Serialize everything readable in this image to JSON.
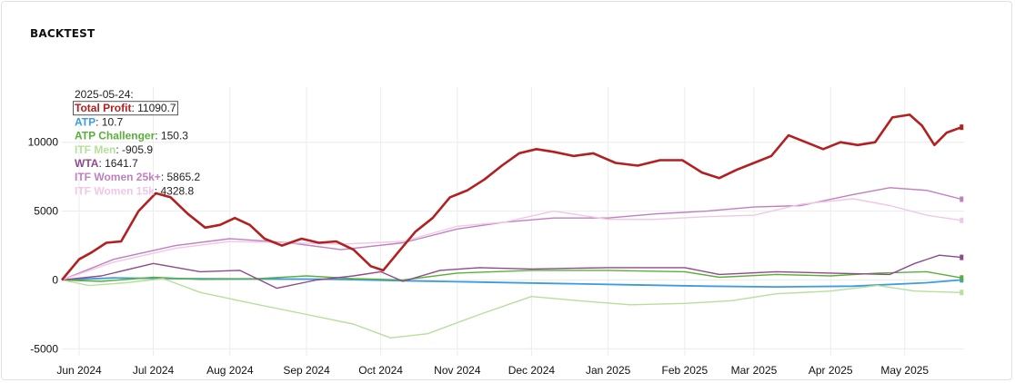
{
  "title": "BACKTEST",
  "chart_data": {
    "type": "line",
    "title": "BACKTEST",
    "x_tick_labels": [
      "Jun 2024",
      "Jul 2024",
      "Aug 2024",
      "Sep 2024",
      "Oct 2024",
      "Nov 2024",
      "Dec 2024",
      "Jan 2025",
      "Feb 2025",
      "Mar 2025",
      "Apr 2025",
      "May 2025"
    ],
    "x_range": [
      "2024-05-25",
      "2025-05-25"
    ],
    "y_ticks": [
      -5000,
      0,
      5000,
      10000
    ],
    "ylim": [
      -5500,
      14000
    ],
    "grid": true,
    "legend": {
      "date": "2025-05-24:",
      "placement": "top-left"
    },
    "series": [
      {
        "name": "ATP",
        "legend_value": "10.7",
        "color": "#3d9be0",
        "width": 1.8,
        "x": [
          "2024-05-25",
          "2024-06-15",
          "2024-07-10",
          "2024-08-10",
          "2024-09-10",
          "2024-10-10",
          "2024-11-10",
          "2024-12-10",
          "2025-01-10",
          "2025-02-10",
          "2025-03-10",
          "2025-04-10",
          "2025-05-10",
          "2025-05-24"
        ],
        "y": [
          0,
          150,
          100,
          80,
          60,
          -50,
          -150,
          -250,
          -350,
          -450,
          -500,
          -450,
          -200,
          10.7
        ]
      },
      {
        "name": "ATP Challenger",
        "legend_value": "150.3",
        "color": "#5aaf3a",
        "width": 1.4,
        "x": [
          "2024-05-25",
          "2024-06-10",
          "2024-07-01",
          "2024-07-20",
          "2024-08-10",
          "2024-09-01",
          "2024-09-20",
          "2024-10-10",
          "2024-11-01",
          "2024-12-01",
          "2025-01-01",
          "2025-02-01",
          "2025-02-15",
          "2025-03-10",
          "2025-04-01",
          "2025-04-20",
          "2025-05-10",
          "2025-05-24"
        ],
        "y": [
          0,
          -100,
          200,
          50,
          80,
          300,
          100,
          0,
          500,
          700,
          700,
          600,
          200,
          400,
          300,
          500,
          600,
          150.3
        ]
      },
      {
        "name": "ITF Men",
        "legend_value": "-905.9",
        "color": "#b6e09a",
        "width": 1.4,
        "x": [
          "2024-05-25",
          "2024-06-05",
          "2024-06-20",
          "2024-07-05",
          "2024-07-20",
          "2024-08-10",
          "2024-09-01",
          "2024-09-20",
          "2024-10-05",
          "2024-10-20",
          "2024-11-10",
          "2024-12-01",
          "2024-12-20",
          "2025-01-10",
          "2025-02-01",
          "2025-02-20",
          "2025-03-10",
          "2025-04-01",
          "2025-04-20",
          "2025-05-05",
          "2025-05-24"
        ],
        "y": [
          0,
          -400,
          -200,
          100,
          -900,
          -1700,
          -2500,
          -3200,
          -4200,
          -3900,
          -2500,
          -1200,
          -1500,
          -1800,
          -1700,
          -1500,
          -1000,
          -800,
          -400,
          -800,
          -905.9
        ]
      },
      {
        "name": "WTA",
        "legend_value": "1641.7",
        "color": "#8e4a8a",
        "width": 1.4,
        "x": [
          "2024-05-25",
          "2024-06-10",
          "2024-07-01",
          "2024-07-20",
          "2024-08-05",
          "2024-08-20",
          "2024-09-05",
          "2024-09-20",
          "2024-10-01",
          "2024-10-10",
          "2024-10-25",
          "2024-11-10",
          "2024-12-01",
          "2025-01-01",
          "2025-02-01",
          "2025-02-15",
          "2025-03-10",
          "2025-04-01",
          "2025-04-25",
          "2025-05-05",
          "2025-05-15",
          "2025-05-24"
        ],
        "y": [
          0,
          300,
          1200,
          600,
          700,
          -600,
          0,
          300,
          600,
          -100,
          700,
          900,
          800,
          900,
          900,
          400,
          600,
          500,
          400,
          1200,
          1800,
          1641.7
        ]
      },
      {
        "name": "ITF Women 25k+",
        "legend_value": "5865.2",
        "color": "#c080c0",
        "width": 1.4,
        "x": [
          "2024-05-25",
          "2024-06-15",
          "2024-07-10",
          "2024-08-01",
          "2024-08-25",
          "2024-09-15",
          "2024-10-10",
          "2024-11-01",
          "2024-11-20",
          "2024-12-10",
          "2025-01-01",
          "2025-01-20",
          "2025-02-10",
          "2025-03-01",
          "2025-03-20",
          "2025-04-10",
          "2025-04-25",
          "2025-05-10",
          "2025-05-24"
        ],
        "y": [
          0,
          1500,
          2500,
          3000,
          2700,
          2200,
          2700,
          3700,
          4200,
          4500,
          4500,
          4800,
          5000,
          5300,
          5400,
          6200,
          6700,
          6500,
          5865.2
        ]
      },
      {
        "name": "ITF Women 15k",
        "legend_value": "4328.8",
        "color": "#f0c8e6",
        "width": 1.4,
        "x": [
          "2024-05-25",
          "2024-06-15",
          "2024-07-10",
          "2024-08-01",
          "2024-08-25",
          "2024-09-15",
          "2024-10-10",
          "2024-11-01",
          "2024-11-20",
          "2024-12-10",
          "2025-01-01",
          "2025-01-20",
          "2025-02-10",
          "2025-03-01",
          "2025-03-20",
          "2025-04-10",
          "2025-04-25",
          "2025-05-10",
          "2025-05-24"
        ],
        "y": [
          0,
          1300,
          2300,
          2800,
          2700,
          2600,
          2800,
          3900,
          4200,
          5000,
          4400,
          4400,
          4600,
          4700,
          5500,
          5900,
          5400,
          4700,
          4328.8
        ]
      },
      {
        "name": "Total Profit",
        "legend_value": "11090.7",
        "color": "#b22020",
        "width": 2.6,
        "x": [
          "2024-05-25",
          "2024-06-01",
          "2024-06-06",
          "2024-06-12",
          "2024-06-18",
          "2024-06-25",
          "2024-07-02",
          "2024-07-08",
          "2024-07-15",
          "2024-07-22",
          "2024-07-28",
          "2024-08-03",
          "2024-08-09",
          "2024-08-15",
          "2024-08-22",
          "2024-08-30",
          "2024-09-06",
          "2024-09-13",
          "2024-09-20",
          "2024-09-27",
          "2024-10-02",
          "2024-10-08",
          "2024-10-15",
          "2024-10-22",
          "2024-10-29",
          "2024-11-05",
          "2024-11-12",
          "2024-11-19",
          "2024-11-26",
          "2024-12-03",
          "2024-12-10",
          "2024-12-18",
          "2024-12-26",
          "2025-01-04",
          "2025-01-13",
          "2025-01-22",
          "2025-01-31",
          "2025-02-08",
          "2025-02-15",
          "2025-02-22",
          "2025-03-01",
          "2025-03-08",
          "2025-03-15",
          "2025-03-22",
          "2025-03-29",
          "2025-04-05",
          "2025-04-12",
          "2025-04-19",
          "2025-04-26",
          "2025-05-03",
          "2025-05-08",
          "2025-05-13",
          "2025-05-18",
          "2025-05-24"
        ],
        "y": [
          0,
          1500,
          2000,
          2700,
          2800,
          5000,
          6300,
          6000,
          4800,
          3800,
          4000,
          4500,
          4000,
          3000,
          2500,
          3000,
          2700,
          2800,
          2200,
          1000,
          700,
          2000,
          3500,
          4500,
          6000,
          6500,
          7300,
          8300,
          9200,
          9500,
          9300,
          9000,
          9200,
          8500,
          8300,
          8700,
          8700,
          7800,
          7400,
          8000,
          8500,
          9000,
          10500,
          10000,
          9500,
          10000,
          9800,
          10000,
          11800,
          12000,
          11200,
          9800,
          10700,
          11090.7
        ]
      }
    ]
  }
}
